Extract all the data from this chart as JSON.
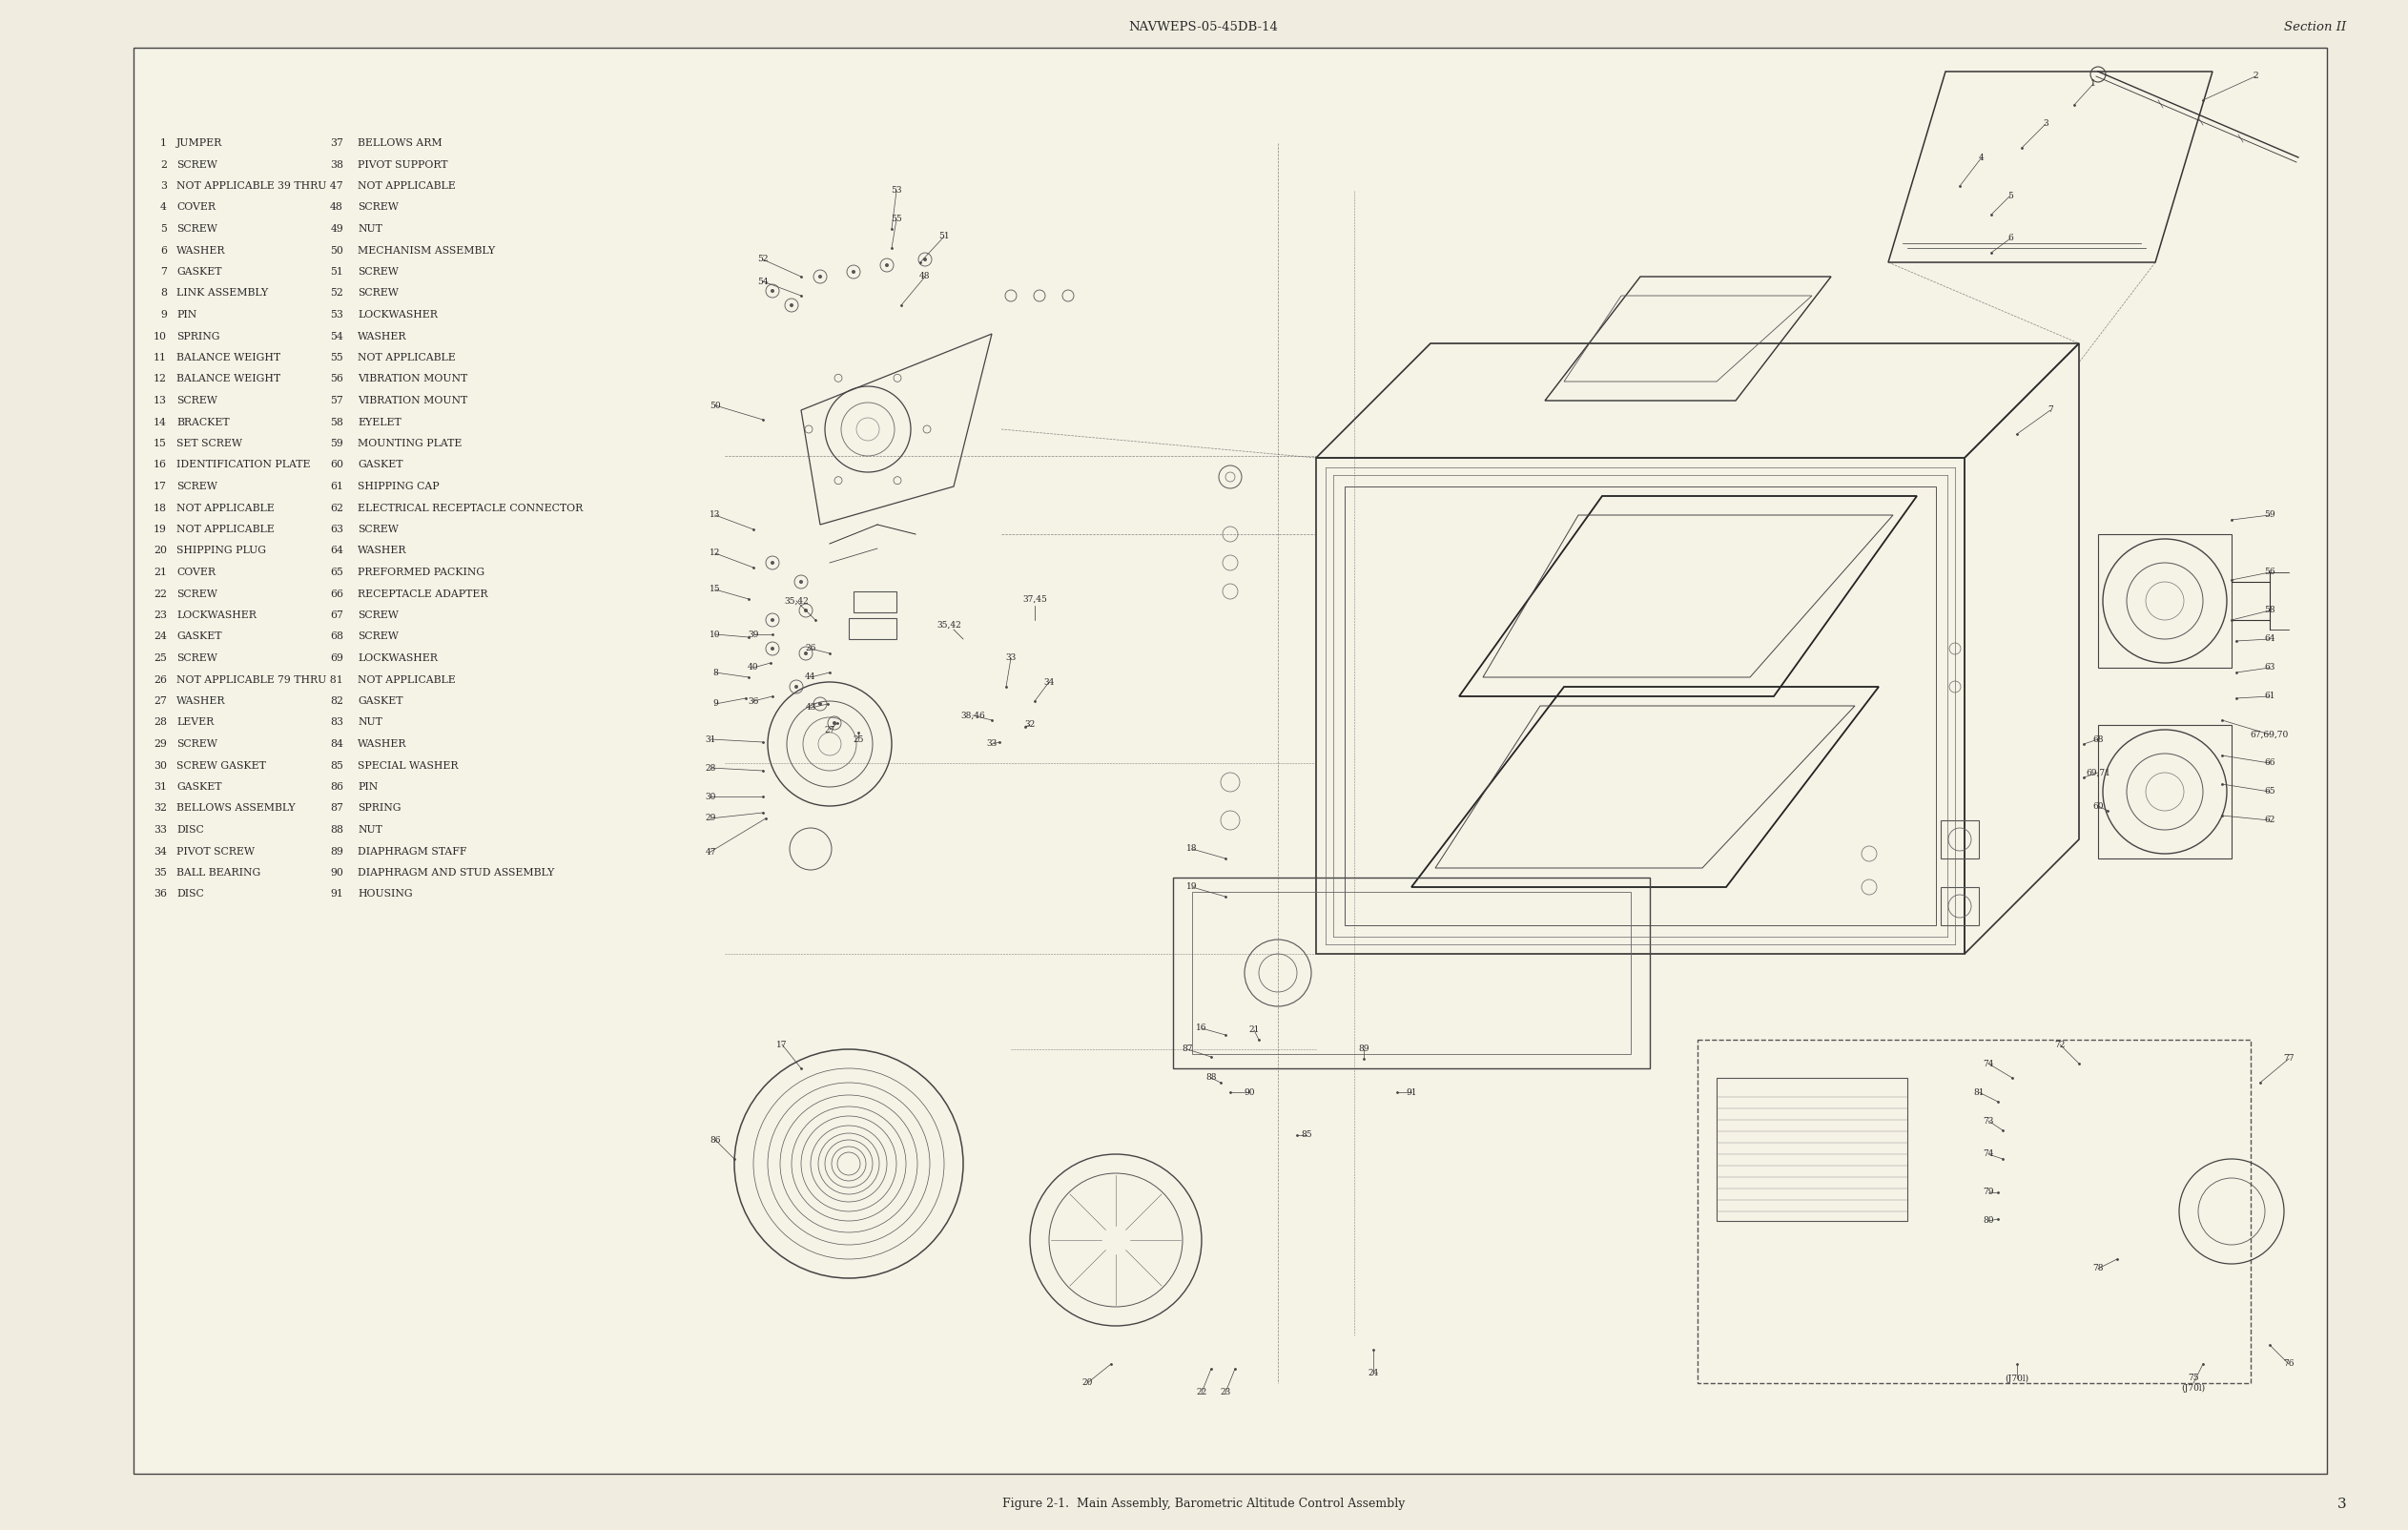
{
  "bg_color": "#f0ede0",
  "page_bg": "#f5f2e6",
  "inner_bg": "#f5f2e6",
  "border_color": "#444444",
  "text_color": "#2a2a2a",
  "header_text": "NAVWEPS-05-45DB-14",
  "section_text": "Section II",
  "footer_text": "Figure 2-1.  Main Assembly, Barometric Altitude Control Assembly",
  "page_number": "3",
  "parts_col1": [
    [
      "1",
      "JUMPER"
    ],
    [
      "2",
      "SCREW"
    ],
    [
      "3",
      "NOT APPLICABLE"
    ],
    [
      "4",
      "COVER"
    ],
    [
      "5",
      "SCREW"
    ],
    [
      "6",
      "WASHER"
    ],
    [
      "7",
      "GASKET"
    ],
    [
      "8",
      "LINK ASSEMBLY"
    ],
    [
      "9",
      "PIN"
    ],
    [
      "10",
      "SPRING"
    ],
    [
      "11",
      "BALANCE WEIGHT"
    ],
    [
      "12",
      "BALANCE WEIGHT"
    ],
    [
      "13",
      "SCREW"
    ],
    [
      "14",
      "BRACKET"
    ],
    [
      "15",
      "SET SCREW"
    ],
    [
      "16",
      "IDENTIFICATION PLATE"
    ],
    [
      "17",
      "SCREW"
    ],
    [
      "18",
      "NOT APPLICABLE"
    ],
    [
      "19",
      "NOT APPLICABLE"
    ],
    [
      "20",
      "SHIPPING PLUG"
    ],
    [
      "21",
      "COVER"
    ],
    [
      "22",
      "SCREW"
    ],
    [
      "23",
      "LOCKWASHER"
    ],
    [
      "24",
      "GASKET"
    ],
    [
      "25",
      "SCREW"
    ],
    [
      "26",
      "NOT APPLICABLE"
    ],
    [
      "27",
      "WASHER"
    ],
    [
      "28",
      "LEVER"
    ],
    [
      "29",
      "SCREW"
    ],
    [
      "30",
      "SCREW GASKET"
    ],
    [
      "31",
      "GASKET"
    ],
    [
      "32",
      "BELLOWS ASSEMBLY"
    ],
    [
      "33",
      "DISC"
    ],
    [
      "34",
      "PIVOT SCREW"
    ],
    [
      "35",
      "BALL BEARING"
    ],
    [
      "36",
      "DISC"
    ]
  ],
  "parts_col2_num": [
    "37",
    "38",
    "39 THRU 47",
    "48",
    "49",
    "50",
    "51",
    "52",
    "53",
    "54",
    "55",
    "56",
    "57",
    "58",
    "59",
    "60",
    "61",
    "62",
    "63",
    "64",
    "65",
    "66",
    "67",
    "68",
    "69",
    "79 THRU 81",
    "82",
    "83",
    "84",
    "85",
    "86",
    "87",
    "88",
    "89",
    "90",
    "91"
  ],
  "parts_col2_name": [
    "BELLOWS ARM",
    "PIVOT SUPPORT",
    "NOT APPLICABLE",
    "SCREW",
    "NUT",
    "MECHANISM ASSEMBLY",
    "SCREW",
    "SCREW",
    "LOCKWASHER",
    "WASHER",
    "NOT APPLICABLE",
    "VIBRATION MOUNT",
    "VIBRATION MOUNT",
    "EYELET",
    "MOUNTING PLATE",
    "GASKET",
    "SHIPPING CAP",
    "ELECTRICAL RECEPTACLE CONNECTOR",
    "SCREW",
    "WASHER",
    "PREFORMED PACKING",
    "RECEPTACLE ADAPTER",
    "SCREW",
    "SCREW",
    "LOCKWASHER",
    "NOT APPLICABLE",
    "GASKET",
    "NUT",
    "WASHER",
    "SPECIAL WASHER",
    "PIN",
    "SPRING",
    "NUT",
    "DIAPHRAGM STAFF",
    "DIAPHRAGM AND STUD ASSEMBLY",
    "HOUSING"
  ]
}
